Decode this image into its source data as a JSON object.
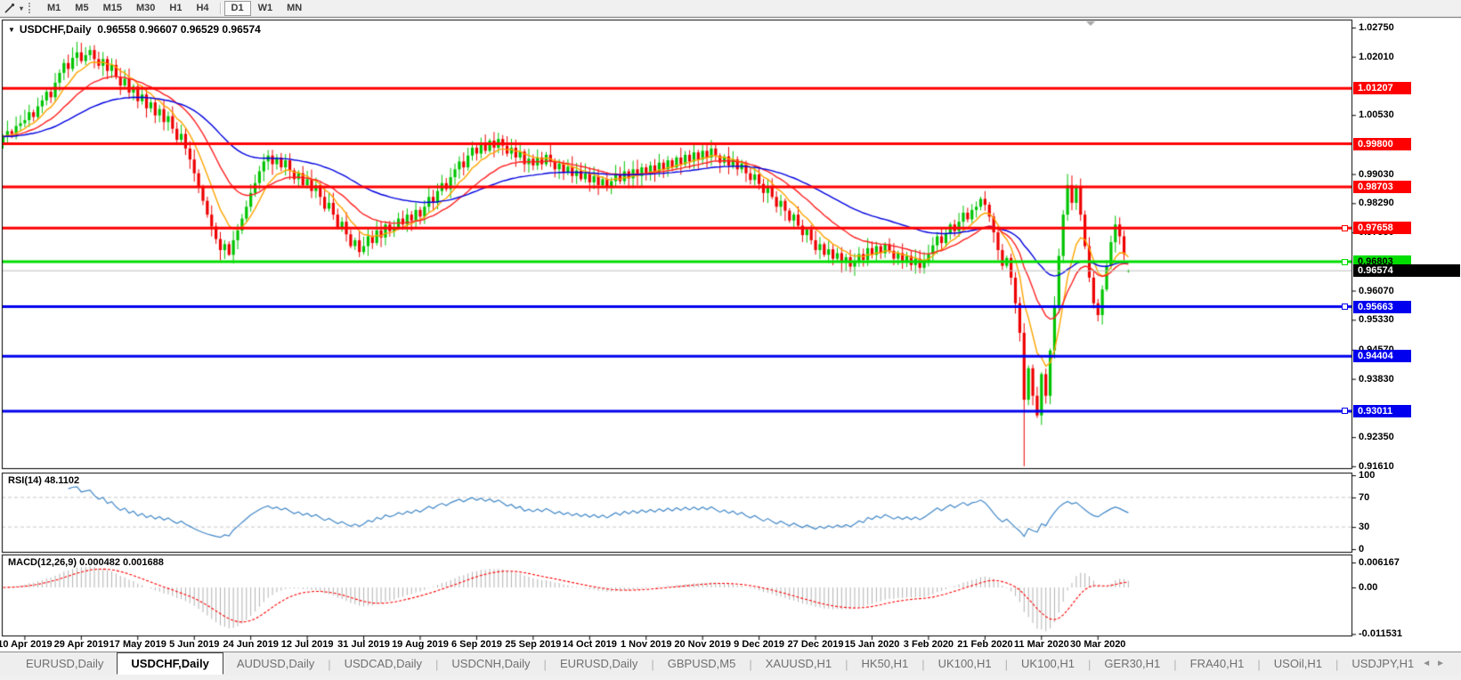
{
  "toolbar": {
    "tool_caret": "▾",
    "timeframes": [
      "M1",
      "M5",
      "M15",
      "M30",
      "H1",
      "H4",
      "D1",
      "W1",
      "MN"
    ],
    "active_timeframe": "D1"
  },
  "chart": {
    "collapse_marker": "▼",
    "symbol_period": "USDCHF,Daily",
    "ohlc_text": "0.96558 0.96607 0.96529 0.96574"
  },
  "chart_data": {
    "type": "candlestick",
    "symbol": "USDCHF",
    "timeframe": "Daily",
    "ohlc_display": {
      "open": 0.96558,
      "high": 0.96607,
      "low": 0.96529,
      "close": 0.96574
    },
    "grid": "off",
    "up_color": "#00C400",
    "down_color": "#EE0000",
    "x_tick_labels": [
      "10 Apr 2019",
      "29 Apr 2019",
      "17 May 2019",
      "5 Jun 2019",
      "24 Jun 2019",
      "12 Jul 2019",
      "31 Jul 2019",
      "19 Aug 2019",
      "6 Sep 2019",
      "25 Sep 2019",
      "14 Oct 2019",
      "1 Nov 2019",
      "20 Nov 2019",
      "9 Dec 2019",
      "27 Dec 2019",
      "15 Jan 2020",
      "3 Feb 2020",
      "21 Feb 2020",
      "11 Mar 2020",
      "30 Mar 2020"
    ],
    "bars_per_tick": 13,
    "first_tick_bar_index": 5,
    "closes": [
      0.9998,
      1.0012,
      1.0005,
      1.0025,
      1.0032,
      1.004,
      1.006,
      1.0048,
      1.0075,
      1.009,
      1.0112,
      1.0098,
      1.0135,
      1.016,
      1.0185,
      1.017,
      1.0198,
      1.0212,
      1.019,
      1.0205,
      1.0218,
      1.0195,
      1.0178,
      1.0195,
      1.0165,
      1.018,
      1.015,
      1.0128,
      1.0145,
      1.011,
      1.0125,
      1.0088,
      1.0105,
      1.007,
      1.0085,
      1.0052,
      1.0068,
      1.0035,
      1.005,
      1.0018,
      0.999,
      1.0005,
      0.9968,
      0.994,
      0.9905,
      0.987,
      0.9835,
      0.98,
      0.977,
      0.9738,
      0.971,
      0.9725,
      0.9698,
      0.9735,
      0.976,
      0.979,
      0.982,
      0.9855,
      0.988,
      0.991,
      0.9935,
      0.995,
      0.9928,
      0.9945,
      0.992,
      0.9938,
      0.9912,
      0.989,
      0.9905,
      0.9875,
      0.989,
      0.986,
      0.9875,
      0.9845,
      0.9815,
      0.983,
      0.98,
      0.9768,
      0.9782,
      0.975,
      0.972,
      0.9735,
      0.9705,
      0.972,
      0.9745,
      0.9728,
      0.976,
      0.9742,
      0.9775,
      0.9758,
      0.9768,
      0.979,
      0.9775,
      0.98,
      0.9785,
      0.9812,
      0.9795,
      0.982,
      0.9845,
      0.983,
      0.986,
      0.988,
      0.9865,
      0.9895,
      0.9915,
      0.9935,
      0.992,
      0.995,
      0.997,
      0.9955,
      0.998,
      0.9962,
      0.9988,
      0.997,
      0.9992,
      0.9975,
      0.9955,
      0.997,
      0.9945,
      0.996,
      0.9928,
      0.9942,
      0.9925,
      0.9945,
      0.9928,
      0.9952,
      0.9935,
      0.9915,
      0.993,
      0.9908,
      0.9922,
      0.9898,
      0.9912,
      0.989,
      0.9905,
      0.9882,
      0.9898,
      0.9875,
      0.989,
      0.9868,
      0.9885,
      0.9902,
      0.9885,
      0.991,
      0.9892,
      0.9915,
      0.9898,
      0.992,
      0.9905,
      0.9925,
      0.9908,
      0.9932,
      0.9915,
      0.9938,
      0.992,
      0.9945,
      0.9928,
      0.9952,
      0.9935,
      0.9958,
      0.994,
      0.9962,
      0.9945,
      0.9968,
      0.995,
      0.9932,
      0.9948,
      0.9925,
      0.994,
      0.9915,
      0.993,
      0.9905,
      0.9888,
      0.9902,
      0.9878,
      0.9855,
      0.987,
      0.9845,
      0.982,
      0.9835,
      0.981,
      0.9785,
      0.98,
      0.9772,
      0.9748,
      0.9762,
      0.9735,
      0.971,
      0.9725,
      0.9698,
      0.9712,
      0.9688,
      0.9702,
      0.9678,
      0.9692,
      0.9668,
      0.9682,
      0.97,
      0.9685,
      0.9715,
      0.9698,
      0.972,
      0.9702,
      0.9725,
      0.9708,
      0.9688,
      0.9702,
      0.968,
      0.9695,
      0.9672,
      0.9688,
      0.9665,
      0.968,
      0.97,
      0.9722,
      0.9745,
      0.9728,
      0.9752,
      0.9775,
      0.9758,
      0.9782,
      0.9805,
      0.9788,
      0.9812,
      0.982,
      0.984,
      0.9825,
      0.9795,
      0.9755,
      0.971,
      0.967,
      0.969,
      0.964,
      0.9575,
      0.95,
      0.933,
      0.941,
      0.934,
      0.929,
      0.9395,
      0.934,
      0.9455,
      0.957,
      0.9695,
      0.98,
      0.9875,
      0.983,
      0.987,
      0.98,
      0.972,
      0.964,
      0.9575,
      0.9545,
      0.961,
      0.967,
      0.973,
      0.9775,
      0.9745,
      0.97,
      0.96574
    ],
    "last_candle": {
      "open": 0.96558,
      "high": 0.96607,
      "low": 0.96529,
      "close": 0.96574
    },
    "wick_overrides": [
      {
        "index": 20,
        "high": 1.0229
      },
      {
        "index": 52,
        "low": 0.9695
      },
      {
        "index": 82,
        "low": 0.9692
      },
      {
        "index": 114,
        "high": 1.0008
      },
      {
        "index": 235,
        "low": 0.9161
      },
      {
        "index": 245,
        "high": 0.9903
      },
      {
        "index": 252,
        "low": 0.9529
      }
    ],
    "moving_averages": [
      {
        "period": 8,
        "color": "#FFA500"
      },
      {
        "period": 20,
        "color": "#FF2020"
      },
      {
        "period": 50,
        "color": "#0000E0"
      }
    ],
    "price_axis_ticks": [
      "1.02750",
      "1.02010",
      "1.00530",
      "0.99030",
      "0.98290",
      "0.97550",
      "0.96070",
      "0.95330",
      "0.94570",
      "0.93830",
      "0.92350",
      "0.91610"
    ],
    "levels": [
      {
        "label": "1.01207",
        "price": 1.01207,
        "color": "#FF0000",
        "text": "#FFFFFF",
        "handle": false
      },
      {
        "label": "0.99800",
        "price": 0.998,
        "color": "#FF0000",
        "text": "#FFFFFF",
        "handle": false
      },
      {
        "label": "0.98703",
        "price": 0.98703,
        "color": "#FF0000",
        "text": "#FFFFFF",
        "handle": false
      },
      {
        "label": "0.97658",
        "price": 0.97658,
        "color": "#FF0000",
        "text": "#FFFFFF",
        "handle": true
      },
      {
        "label": "0.96803",
        "price": 0.96803,
        "color": "#00DD00",
        "text": "#000000",
        "handle": true
      },
      {
        "label": "0.95663",
        "price": 0.95663,
        "color": "#0000EE",
        "text": "#FFFFFF",
        "handle": true
      },
      {
        "label": "0.94404",
        "price": 0.94404,
        "color": "#0000EE",
        "text": "#FFFFFF",
        "handle": false
      },
      {
        "label": "0.93011",
        "price": 0.93011,
        "color": "#0000EE",
        "text": "#FFFFFF",
        "handle": true
      }
    ],
    "current_price": {
      "label": "0.96574",
      "price": 0.96574,
      "badge": "#000000",
      "line": "#C0C0C0"
    },
    "indicators": [
      {
        "name": "RSI",
        "label": "RSI(14) 48.1102",
        "period": 14,
        "value": 48.1102,
        "levels": [
          70,
          30
        ],
        "axis_labels": [
          "100",
          "70",
          "30",
          "0"
        ],
        "color": "#4087C7"
      },
      {
        "name": "MACD",
        "label": "MACD(12,26,9) 0.000482 0.001688",
        "params": [
          12,
          26,
          9
        ],
        "value": 0.000482,
        "signal_value": 0.001688,
        "axis_labels": [
          "0.006167",
          "0.00",
          "-0.011531"
        ],
        "hist_color": "#B2B2B2",
        "signal_color": "#FF0000"
      }
    ]
  },
  "tabs": {
    "items": [
      {
        "label": "EURUSD,Daily",
        "active": false
      },
      {
        "label": "USDCHF,Daily",
        "active": true
      },
      {
        "label": "AUDUSD,Daily",
        "active": false
      },
      {
        "label": "USDCAD,Daily",
        "active": false
      },
      {
        "label": "USDCNH,Daily",
        "active": false
      },
      {
        "label": "EURUSD,Daily",
        "active": false
      },
      {
        "label": "GBPUSD,M5",
        "active": false
      },
      {
        "label": "XAUUSD,H1",
        "active": false
      },
      {
        "label": "HK50,H1",
        "active": false
      },
      {
        "label": "UK100,H1",
        "active": false
      },
      {
        "label": "UK100,H1",
        "active": false
      },
      {
        "label": "GER30,H1",
        "active": false
      },
      {
        "label": "FRA40,H1",
        "active": false
      },
      {
        "label": "USOil,H1",
        "active": false
      },
      {
        "label": "USDJPY,H1",
        "active": false
      }
    ],
    "scroll_left": "◄",
    "scroll_right": "►"
  }
}
